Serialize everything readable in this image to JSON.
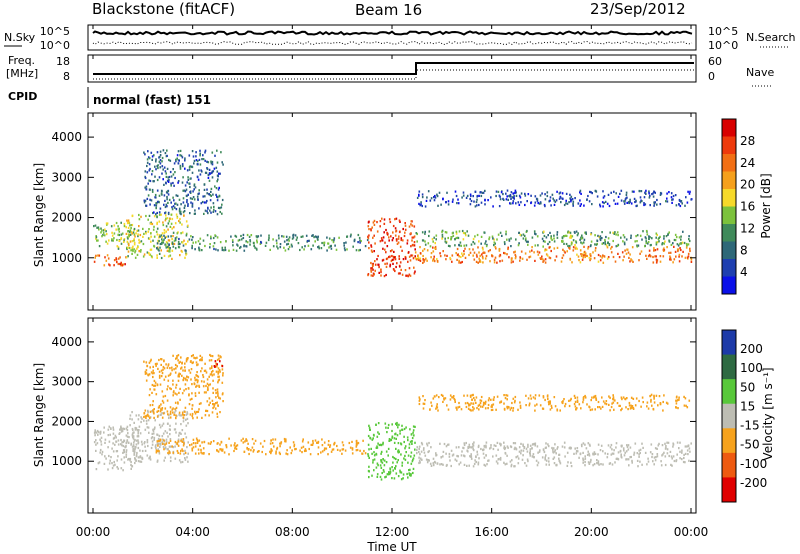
{
  "header": {
    "title": "Blackstone (fitACF)",
    "beam": "Beam 16",
    "date": "23/Sep/2012"
  },
  "noise_panel": {
    "left_label": "N.Sky",
    "right_label": "N.Search",
    "ticks_left": [
      "10^5",
      "10^0"
    ],
    "ticks_right": [
      "10^5",
      "10^0"
    ]
  },
  "freq_panel": {
    "left_label_line1": "Freq.",
    "left_label_line2": "[MHz]",
    "right_label": "Nave",
    "ticks_left": [
      "18",
      "8"
    ],
    "ticks_right": [
      "60",
      "0"
    ]
  },
  "cpid": {
    "label": "CPID",
    "value": "normal (fast) 151"
  },
  "x_axis": {
    "title": "Time UT",
    "ticks": [
      "00:00",
      "04:00",
      "08:00",
      "12:00",
      "16:00",
      "20:00",
      "00:00"
    ]
  },
  "colors": {
    "power": [
      "#0a10e8",
      "#1e3fb0",
      "#2e6878",
      "#3f8a5a",
      "#7cc23c",
      "#f6d92a",
      "#f5a01c",
      "#f26f14",
      "#ee3a0c",
      "#d80000"
    ],
    "velocity": [
      "#e00000",
      "#ee5a10",
      "#f6a21c",
      "#bdbdb3",
      "#58c83a",
      "#2e6a42",
      "#1d3aa8"
    ]
  },
  "chart_data": [
    {
      "type": "heatmap",
      "panel": "power",
      "xlabel": "",
      "ylabel": "Slant Range [km]",
      "x_range_hours_ut": [
        0,
        24
      ],
      "ylim": [
        0,
        4500
      ],
      "yticks": [
        "1000",
        "2000",
        "3000",
        "4000"
      ],
      "colorbar_label": "Power [dB]",
      "colorbar_ticks": [
        "4",
        "8",
        "12",
        "16",
        "20",
        "24",
        "28"
      ],
      "features": [
        {
          "time_ut": [
            0.0,
            1.3
          ],
          "range_km": [
            800,
            1100
          ],
          "power_db": 26
        },
        {
          "time_ut": [
            0.0,
            1.8
          ],
          "range_km": [
            1200,
            1900
          ],
          "power_db": 14
        },
        {
          "time_ut": [
            1.3,
            3.8
          ],
          "range_km": [
            1000,
            2100
          ],
          "power_db": 16
        },
        {
          "time_ut": [
            2.0,
            5.2
          ],
          "range_km": [
            2100,
            3700
          ],
          "power_db": 6
        },
        {
          "time_ut": [
            2.5,
            11.0
          ],
          "range_km": [
            1200,
            1600
          ],
          "power_db": 10
        },
        {
          "time_ut": [
            11.0,
            12.9
          ],
          "range_km": [
            550,
            2000
          ],
          "power_db": 28
        },
        {
          "time_ut": [
            12.9,
            24.0
          ],
          "range_km": [
            900,
            1300
          ],
          "power_db": 24
        },
        {
          "time_ut": [
            12.9,
            24.0
          ],
          "range_km": [
            1300,
            1700
          ],
          "power_db": 12
        },
        {
          "time_ut": [
            13.0,
            24.0
          ],
          "range_km": [
            2300,
            2700
          ],
          "power_db": 4
        }
      ]
    },
    {
      "type": "heatmap",
      "panel": "velocity",
      "xlabel": "Time UT",
      "ylabel": "Slant Range [km]",
      "x_range_hours_ut": [
        0,
        24
      ],
      "ylim": [
        0,
        4500
      ],
      "yticks": [
        "1000",
        "2000",
        "3000",
        "4000"
      ],
      "colorbar_label": "Velocity [m s⁻¹]",
      "colorbar_ticks": [
        "-200",
        "-100",
        "-50",
        "-15",
        "15",
        "50",
        "100",
        "200"
      ],
      "features": [
        {
          "time_ut": [
            0.0,
            1.8
          ],
          "range_km": [
            800,
            1900
          ],
          "velocity_ms": 0
        },
        {
          "time_ut": [
            1.3,
            3.8
          ],
          "range_km": [
            1000,
            2300
          ],
          "velocity_ms": 0
        },
        {
          "time_ut": [
            2.0,
            5.2
          ],
          "range_km": [
            2100,
            3700
          ],
          "velocity_ms": -40
        },
        {
          "time_ut": [
            4.8,
            5.2
          ],
          "range_km": [
            3400,
            3600
          ],
          "velocity_ms": -200
        },
        {
          "time_ut": [
            2.5,
            11.0
          ],
          "range_km": [
            1200,
            1600
          ],
          "velocity_ms": -40
        },
        {
          "time_ut": [
            11.0,
            12.9
          ],
          "range_km": [
            550,
            2000
          ],
          "velocity_ms": 30
        },
        {
          "time_ut": [
            12.9,
            24.0
          ],
          "range_km": [
            900,
            1500
          ],
          "velocity_ms": 0
        },
        {
          "time_ut": [
            13.0,
            24.0
          ],
          "range_km": [
            2300,
            2700
          ],
          "velocity_ms": -40
        }
      ]
    }
  ]
}
